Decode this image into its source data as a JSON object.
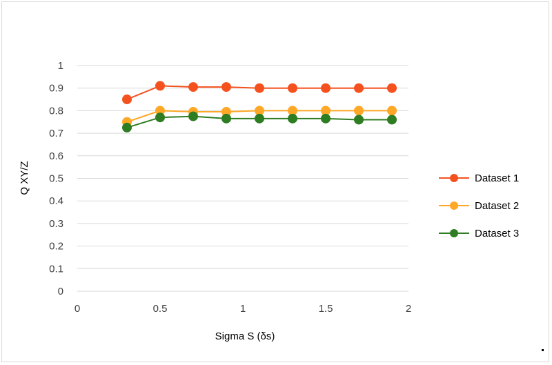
{
  "chart_data": {
    "type": "line",
    "title": "",
    "xlabel": "Sigma S  (δs)",
    "ylabel": "Q XY/Z",
    "xlim": [
      0,
      2
    ],
    "ylim": [
      0,
      1
    ],
    "x_ticks": [
      "0",
      "0.5",
      "1",
      "1.5",
      "2"
    ],
    "y_ticks": [
      "0",
      "0.1",
      "0.2",
      "0.3",
      "0.4",
      "0.5",
      "0.6",
      "0.7",
      "0.8",
      "0.9",
      "1"
    ],
    "grid": "horizontal",
    "legend_position": "right",
    "x": [
      0.3,
      0.5,
      0.7,
      0.9,
      1.1,
      1.3,
      1.5,
      1.7,
      1.9
    ],
    "series": [
      {
        "name": "Dataset 1",
        "color": "#f4511e",
        "values": [
          0.85,
          0.91,
          0.905,
          0.905,
          0.9,
          0.9,
          0.9,
          0.9,
          0.9
        ]
      },
      {
        "name": "Dataset 2",
        "color": "#ffa726",
        "values": [
          0.75,
          0.8,
          0.795,
          0.795,
          0.8,
          0.8,
          0.8,
          0.8,
          0.8
        ]
      },
      {
        "name": "Dataset 3",
        "color": "#2e7d22",
        "values": [
          0.725,
          0.77,
          0.775,
          0.765,
          0.765,
          0.765,
          0.765,
          0.76,
          0.76
        ]
      }
    ]
  }
}
